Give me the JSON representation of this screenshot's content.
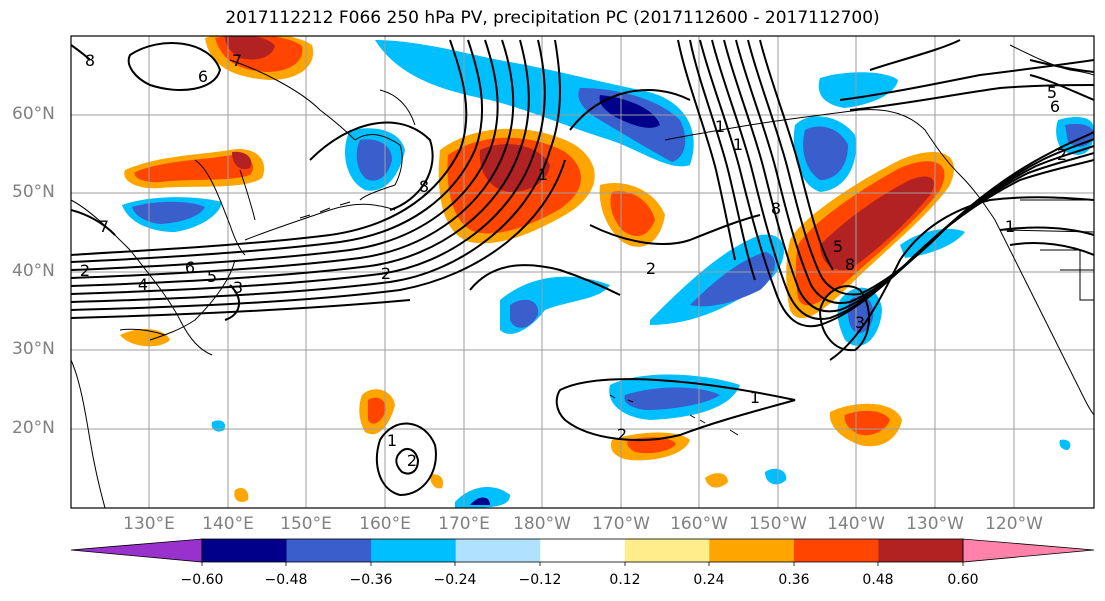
{
  "title": "2017112212 F066 250 hPa PV, precipitation PC (2017112600 - 2017112700)",
  "lat_labels": [
    "60°N",
    "50°N",
    "40°N",
    "30°N",
    "20°N"
  ],
  "lon_labels": [
    "130°E",
    "140°E",
    "150°E",
    "160°E",
    "170°E",
    "180°W",
    "170°W",
    "160°W",
    "150°W",
    "140°W",
    "130°W",
    "120°W"
  ],
  "contour_labels": [
    "8",
    "6",
    "7",
    "7",
    "2",
    "6",
    "5",
    "4",
    "3",
    "8",
    "2",
    "1",
    "2",
    "1",
    "1",
    "8",
    "5",
    "8",
    "1",
    "3",
    "2",
    "1",
    "2",
    "5",
    "6",
    "2",
    "1"
  ],
  "colorbar": {
    "ticks": [
      "−0.60",
      "−0.48",
      "−0.36",
      "−0.24",
      "−0.12",
      "0.12",
      "0.24",
      "0.36",
      "0.48",
      "0.60"
    ],
    "colors": [
      "#9932CC",
      "#00008B",
      "#3A5FCD",
      "#00BFFF",
      "#B0E2FF",
      "#FFFFFF",
      "#FFEC8B",
      "#FFA500",
      "#FF4500",
      "#B22222",
      "#FF82AB"
    ]
  }
}
